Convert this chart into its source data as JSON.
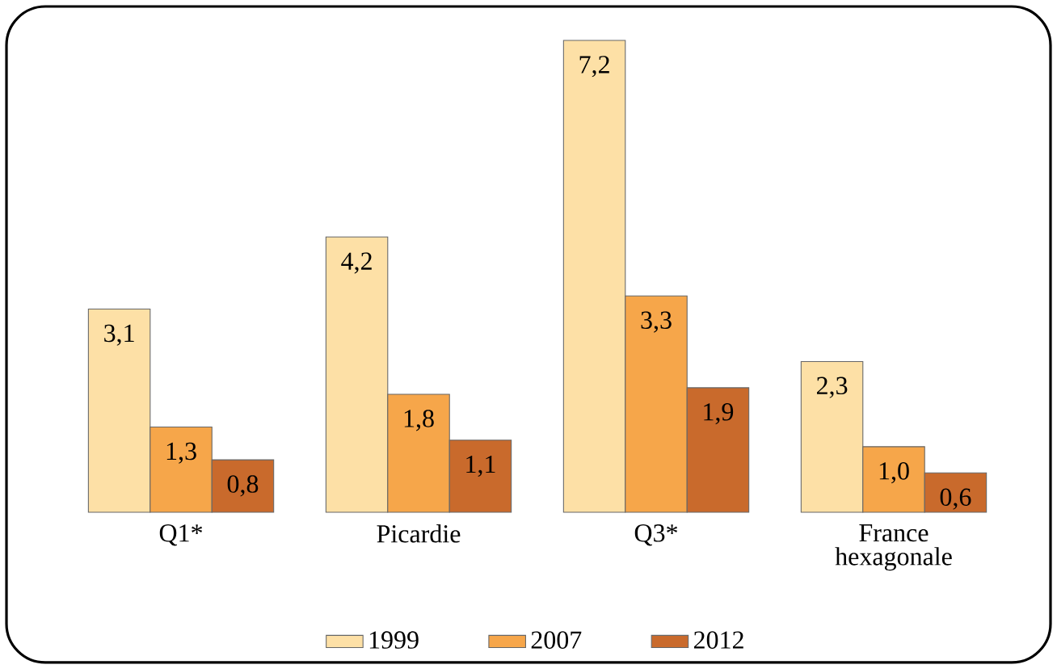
{
  "chart_data": {
    "type": "bar",
    "categories": [
      "Q1*",
      "Picardie",
      "Q3*",
      "France hexagonale"
    ],
    "series": [
      {
        "name": "1999",
        "color": "#fde0a6",
        "values": [
          3.1,
          4.2,
          7.2,
          2.3
        ],
        "value_labels": [
          "3,1",
          "4,2",
          "7,2",
          "2,3"
        ]
      },
      {
        "name": "2007",
        "color": "#f6a64a",
        "values": [
          1.3,
          1.8,
          3.3,
          1.0
        ],
        "value_labels": [
          "1,3",
          "1,8",
          "3,3",
          "1,0"
        ]
      },
      {
        "name": "2012",
        "color": "#c96a2c",
        "values": [
          0.8,
          1.1,
          1.9,
          0.6
        ],
        "value_labels": [
          "0,8",
          "1,1",
          "1,9",
          "0,6"
        ]
      }
    ],
    "legend": "bottom"
  }
}
